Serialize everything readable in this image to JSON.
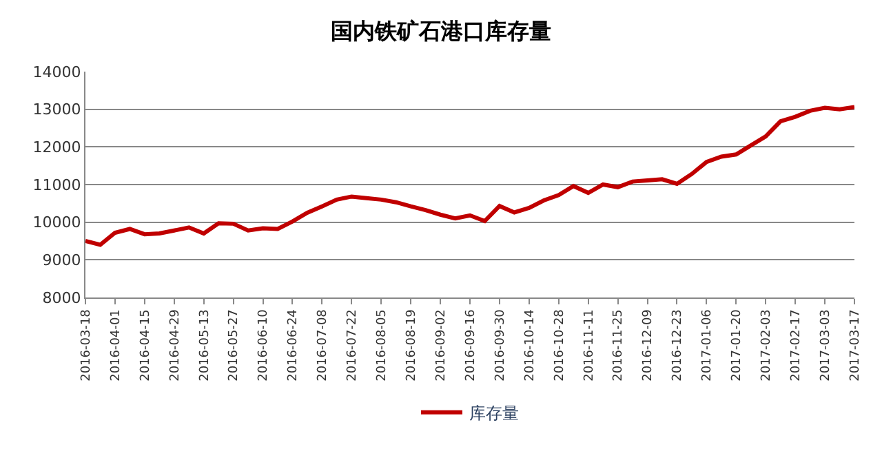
{
  "chart_data": {
    "type": "line",
    "title": "国内铁矿石港口库存量",
    "x": [
      "2016-03-18",
      "2016-03-25",
      "2016-04-01",
      "2016-04-08",
      "2016-04-15",
      "2016-04-22",
      "2016-04-29",
      "2016-05-06",
      "2016-05-13",
      "2016-05-20",
      "2016-05-27",
      "2016-06-03",
      "2016-06-10",
      "2016-06-17",
      "2016-06-24",
      "2016-07-01",
      "2016-07-08",
      "2016-07-15",
      "2016-07-22",
      "2016-07-29",
      "2016-08-05",
      "2016-08-12",
      "2016-08-19",
      "2016-08-26",
      "2016-09-02",
      "2016-09-09",
      "2016-09-16",
      "2016-09-23",
      "2016-09-30",
      "2016-10-07",
      "2016-10-14",
      "2016-10-21",
      "2016-10-28",
      "2016-11-04",
      "2016-11-11",
      "2016-11-18",
      "2016-11-25",
      "2016-12-02",
      "2016-12-09",
      "2016-12-16",
      "2016-12-23",
      "2016-12-30",
      "2017-01-06",
      "2017-01-13",
      "2017-01-20",
      "2017-01-27",
      "2017-02-03",
      "2017-02-10",
      "2017-02-17",
      "2017-02-24",
      "2017-03-03",
      "2017-03-10",
      "2017-03-17"
    ],
    "series": [
      {
        "name": "库存量",
        "color": "#c00000",
        "values": [
          9500,
          9400,
          9720,
          9820,
          9680,
          9700,
          9780,
          9860,
          9700,
          9970,
          9960,
          9780,
          9840,
          9820,
          10020,
          10250,
          10420,
          10600,
          10680,
          10640,
          10600,
          10530,
          10420,
          10320,
          10200,
          10100,
          10180,
          10030,
          10430,
          10260,
          10380,
          10580,
          10720,
          10960,
          10780,
          11000,
          10930,
          11080,
          11110,
          11140,
          11020,
          11280,
          11600,
          11740,
          11800,
          12040,
          12280,
          12680,
          12800,
          12960,
          13040,
          13000,
          13060
        ]
      }
    ],
    "xlim": [
      "2016-03-18",
      "2017-03-17"
    ],
    "xticks": [
      "2016-03-18",
      "2016-04-01",
      "2016-04-15",
      "2016-04-29",
      "2016-05-13",
      "2016-05-27",
      "2016-06-10",
      "2016-06-24",
      "2016-07-08",
      "2016-07-22",
      "2016-08-05",
      "2016-08-19",
      "2016-09-02",
      "2016-09-16",
      "2016-09-30",
      "2016-10-14",
      "2016-10-28",
      "2016-11-11",
      "2016-11-25",
      "2016-12-09",
      "2016-12-23",
      "2017-01-06",
      "2017-01-20",
      "2017-02-03",
      "2017-02-17",
      "2017-03-03",
      "2017-03-17"
    ],
    "ylim": [
      8000,
      14000
    ],
    "yticks": [
      8000,
      9000,
      10000,
      11000,
      12000,
      13000,
      14000
    ],
    "grid": "y",
    "legend": "bottom",
    "marker": "none",
    "line_style": "solid"
  }
}
